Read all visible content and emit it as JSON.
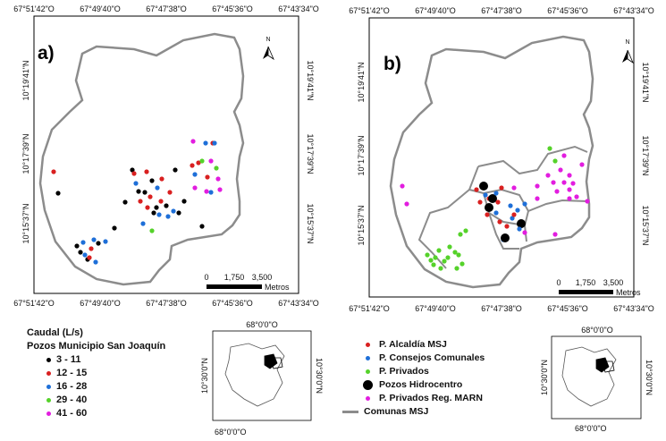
{
  "colors": {
    "black": "#000000",
    "red": "#d92020",
    "blue": "#1e6fd8",
    "green": "#55d22a",
    "magenta": "#e21ddf",
    "outline": "#8c8c8c"
  },
  "panel_a": {
    "label": "a)",
    "top_ticks": [
      "67°51'42\"O",
      "67°49'40\"O",
      "67°47'38\"O",
      "67°45'36\"O",
      "67°43'34\"O"
    ],
    "bottom_ticks": [
      "67°51'42\"O",
      "67°49'40\"O",
      "67°47'38\"O",
      "67°45'36\"O",
      "67°43'34\"O"
    ],
    "left_ticks": [
      "10°19'41\"N",
      "10°17'39\"N",
      "10°15'37\"N"
    ],
    "right_ticks": [
      "10°19'41\"N",
      "10°17'39\"N",
      "10°15'37\"N"
    ],
    "north": "N",
    "scale": {
      "zero": "0",
      "mid": "1,750",
      "end": "3,500",
      "unit": "Metros"
    },
    "legend": {
      "title": "Caudal (L/s)",
      "subtitle": "Pozos Municipio San Joaquín",
      "items": [
        {
          "label": "3 - 11",
          "color": "black"
        },
        {
          "label": "12 - 15",
          "color": "red"
        },
        {
          "label": "16 - 28",
          "color": "blue"
        },
        {
          "label": "29 - 40",
          "color": "green"
        },
        {
          "label": "41 - 60",
          "color": "magenta"
        }
      ]
    },
    "inset": {
      "top_tick": "68°0'0\"O",
      "bottom_tick": "68°0'0\"O",
      "left_tick": "10°30'0\"N",
      "right_tick": "10°30'0\"N"
    }
  },
  "panel_b": {
    "label": "b)",
    "top_ticks": [
      "67°51'42\"O",
      "67°49'40\"O",
      "67°47'38\"O",
      "67°45'36\"O",
      "67°43'34\"O"
    ],
    "bottom_ticks": [
      "67°51'42\"O",
      "67°49'40\"O",
      "67°47'38\"O",
      "67°45'36\"O",
      "67°43'34\"O"
    ],
    "left_ticks": [
      "10°19'41\"N",
      "10°17'39\"N",
      "10°15'37\"N"
    ],
    "right_ticks": [
      "10°19'41\"N",
      "10°17'39\"N",
      "10°15'37\"N"
    ],
    "north": "N",
    "scale": {
      "zero": "0",
      "mid": "1,750",
      "end": "3,500",
      "unit": "Metros"
    },
    "legend": {
      "items": [
        {
          "label": "P. Alcaldía MSJ",
          "color": "red"
        },
        {
          "label": "P. Consejos Comunales",
          "color": "blue"
        },
        {
          "label": "P. Privados",
          "color": "green"
        },
        {
          "label": "Pozos Hidrocentro",
          "color": "black"
        },
        {
          "label": "P. Privados Reg. MARN",
          "color": "magenta"
        },
        {
          "label": "Comunas MSJ",
          "color": "outline"
        }
      ]
    },
    "inset": {
      "top_tick": "68°0'0\"O",
      "bottom_tick": "68°0'0\"O",
      "left_tick": "10°30'0\"N",
      "right_tick": "10°30'0\"N"
    }
  }
}
